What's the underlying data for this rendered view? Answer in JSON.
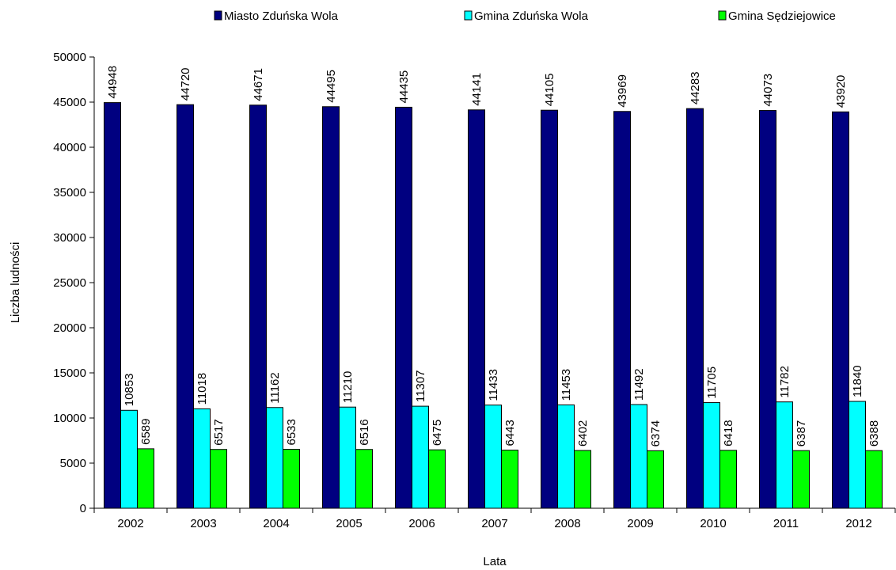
{
  "chart_data": {
    "type": "bar",
    "x_label": "Lata",
    "y_label": "Liczba ludności",
    "categories": [
      "2002",
      "2003",
      "2004",
      "2005",
      "2006",
      "2007",
      "2008",
      "2009",
      "2010",
      "2011",
      "2012"
    ],
    "series": [
      {
        "name": "Miasto Zduńska Wola",
        "color": "#000080",
        "values": [
          44948,
          44720,
          44671,
          44495,
          44435,
          44141,
          44105,
          43969,
          44283,
          44073,
          43920
        ]
      },
      {
        "name": "Gmina Zduńska Wola",
        "color": "#00ffff",
        "values": [
          10853,
          11018,
          11162,
          11210,
          11307,
          11433,
          11453,
          11492,
          11705,
          11782,
          11840
        ]
      },
      {
        "name": "Gmina Sędziejowice",
        "color": "#00ff00",
        "values": [
          6589,
          6517,
          6533,
          6516,
          6475,
          6443,
          6402,
          6374,
          6418,
          6387,
          6388
        ]
      }
    ],
    "ylim": [
      0,
      50000
    ],
    "yticks": [
      0,
      5000,
      10000,
      15000,
      20000,
      25000,
      30000,
      35000,
      40000,
      45000,
      50000
    ],
    "legend": "top",
    "data_labels": true
  }
}
